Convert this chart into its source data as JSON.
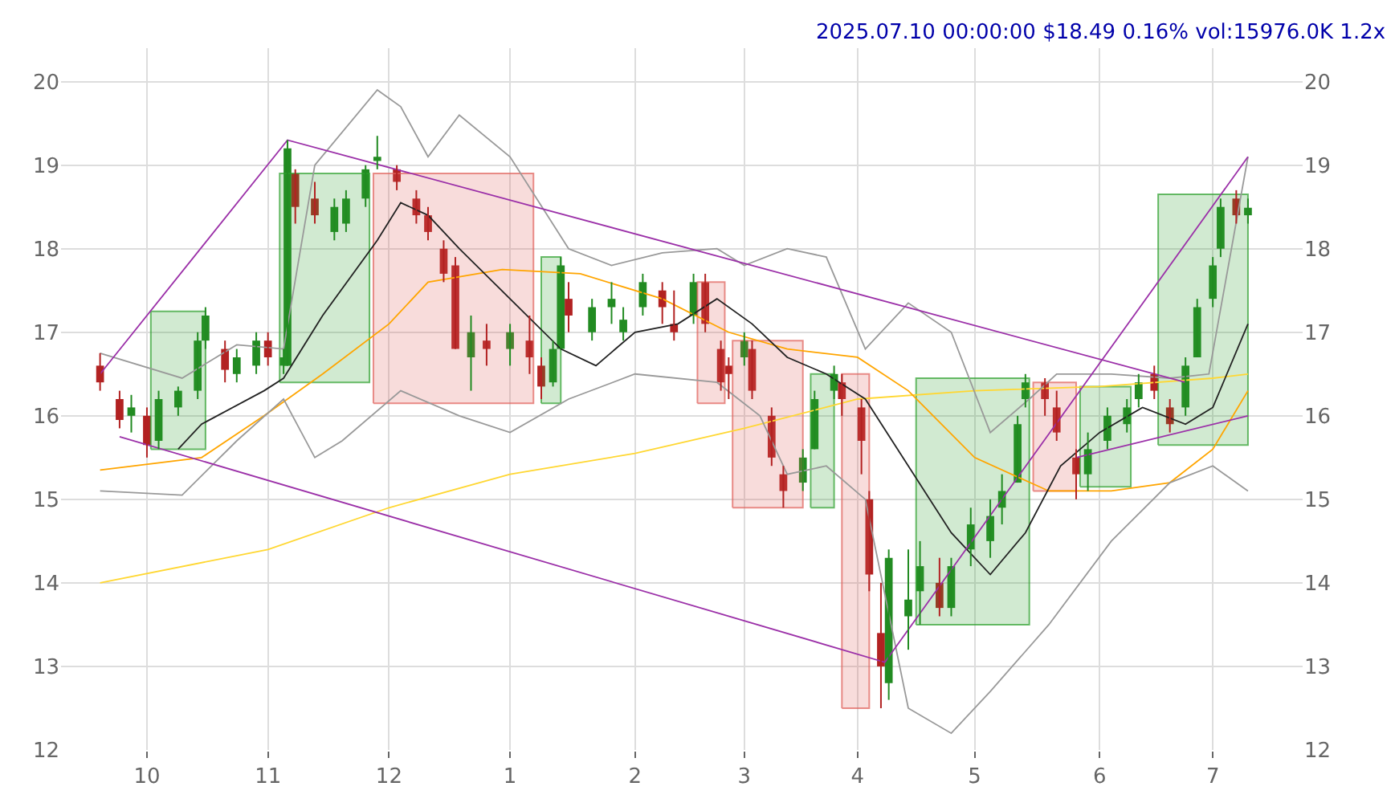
{
  "chart_data": {
    "type": "candlestick",
    "title": "2025.07.10 00:00:00 $18.49 0.16% vol:15976.0K 1.2x",
    "xlim": [
      "2024-09-09",
      "2025-07-24"
    ],
    "xticks": [
      {
        "value": "2024-10-01",
        "label": "10"
      },
      {
        "value": "2024-11-01",
        "label": "11"
      },
      {
        "value": "2024-12-02",
        "label": "12"
      },
      {
        "value": "2025-01-02",
        "label": "1"
      },
      {
        "value": "2025-02-03",
        "label": "2"
      },
      {
        "value": "2025-03-03",
        "label": "3"
      },
      {
        "value": "2025-04-01",
        "label": "4"
      },
      {
        "value": "2025-05-01",
        "label": "5"
      },
      {
        "value": "2025-06-02",
        "label": "6"
      },
      {
        "value": "2025-07-01",
        "label": "7"
      }
    ],
    "ylim": [
      12,
      20.4
    ],
    "yticks": [
      12,
      13,
      14,
      15,
      16,
      17,
      18,
      19,
      20
    ],
    "y2lim": [
      12,
      20.4
    ],
    "y2ticks": [
      12,
      13,
      14,
      15,
      16,
      17,
      18,
      19,
      20
    ],
    "grid": true,
    "series": [
      {
        "type": "area",
        "color": "#2ca02c",
        "x": [
          "2024-10-02",
          "2024-10-16",
          "2024-10-16",
          "2024-10-02",
          "2024-10-02"
        ],
        "values": [
          15.6,
          15.6,
          17.25,
          17.25,
          15.6
        ]
      },
      {
        "type": "area",
        "color": "#2ca02c",
        "x": [
          "2024-11-04",
          "2024-11-27",
          "2024-11-27",
          "2024-11-04",
          "2024-11-04"
        ],
        "values": [
          16.4,
          16.4,
          18.9,
          18.9,
          16.4
        ]
      },
      {
        "type": "area",
        "color": "#e0605a",
        "x": [
          "2024-11-28",
          "2025-01-08",
          "2025-01-08",
          "2024-11-28",
          "2024-11-28"
        ],
        "values": [
          16.15,
          16.15,
          18.9,
          18.9,
          16.15
        ]
      },
      {
        "type": "area",
        "color": "#2ca02c",
        "x": [
          "2025-01-10",
          "2025-01-15",
          "2025-01-15",
          "2025-01-10",
          "2025-01-10"
        ],
        "values": [
          16.15,
          16.15,
          17.9,
          17.9,
          16.15
        ]
      },
      {
        "type": "area",
        "color": "#e0605a",
        "x": [
          "2025-02-19",
          "2025-02-26",
          "2025-02-26",
          "2025-02-19",
          "2025-02-19"
        ],
        "values": [
          16.15,
          16.15,
          17.6,
          17.6,
          16.15
        ]
      },
      {
        "type": "area",
        "color": "#e0605a",
        "x": [
          "2025-02-28",
          "2025-03-18",
          "2025-03-18",
          "2025-02-28",
          "2025-02-28"
        ],
        "values": [
          14.9,
          14.9,
          16.9,
          16.9,
          14.9
        ]
      },
      {
        "type": "area",
        "color": "#2ca02c",
        "x": [
          "2025-03-20",
          "2025-03-26",
          "2025-03-26",
          "2025-03-20",
          "2025-03-20"
        ],
        "values": [
          14.9,
          14.9,
          16.5,
          16.5,
          14.9
        ]
      },
      {
        "type": "area",
        "color": "#e0605a",
        "x": [
          "2025-03-28",
          "2025-04-04",
          "2025-04-04",
          "2025-03-28",
          "2025-03-28"
        ],
        "values": [
          12.5,
          12.5,
          16.5,
          16.5,
          12.5
        ]
      },
      {
        "type": "area",
        "color": "#2ca02c",
        "x": [
          "2025-04-16",
          "2025-05-15",
          "2025-05-15",
          "2025-04-16",
          "2025-04-16"
        ],
        "values": [
          13.5,
          13.5,
          16.45,
          16.45,
          13.5
        ]
      },
      {
        "type": "area",
        "color": "#e0605a",
        "x": [
          "2025-05-16",
          "2025-05-27",
          "2025-05-27",
          "2025-05-16",
          "2025-05-16"
        ],
        "values": [
          15.1,
          15.1,
          16.4,
          16.4,
          15.1
        ]
      },
      {
        "type": "area",
        "color": "#2ca02c",
        "x": [
          "2025-05-28",
          "2025-06-10",
          "2025-06-10",
          "2025-05-28",
          "2025-05-28"
        ],
        "values": [
          15.15,
          15.15,
          16.35,
          16.35,
          15.15
        ]
      },
      {
        "type": "area",
        "color": "#2ca02c",
        "x": [
          "2025-06-17",
          "2025-07-10",
          "2025-07-10",
          "2025-06-17",
          "2025-06-17"
        ],
        "values": [
          15.65,
          15.65,
          18.65,
          18.65,
          15.65
        ]
      },
      {
        "type": "line",
        "color": "#ffd732",
        "x": [
          "2024-09-19",
          "2024-11-01",
          "2024-12-02",
          "2025-01-02",
          "2025-02-03",
          "2025-03-03",
          "2025-04-01",
          "2025-05-01",
          "2025-06-02",
          "2025-07-01",
          "2025-07-10"
        ],
        "values": [
          14.0,
          14.4,
          14.9,
          15.3,
          15.55,
          15.85,
          16.2,
          16.3,
          16.35,
          16.45,
          16.5
        ]
      },
      {
        "type": "line",
        "color": "#ffa500",
        "x": [
          "2024-09-19",
          "2024-10-15",
          "2024-10-31",
          "2024-11-15",
          "2024-12-02",
          "2024-12-12",
          "2024-12-31",
          "2025-01-20",
          "2025-02-10",
          "2025-02-27",
          "2025-03-14",
          "2025-04-01",
          "2025-04-14",
          "2025-05-01",
          "2025-05-20",
          "2025-06-05",
          "2025-06-20",
          "2025-07-01",
          "2025-07-10"
        ],
        "values": [
          15.35,
          15.5,
          16.0,
          16.5,
          17.1,
          17.6,
          17.75,
          17.7,
          17.4,
          17.0,
          16.8,
          16.7,
          16.3,
          15.5,
          15.1,
          15.1,
          15.2,
          15.6,
          16.3
        ]
      },
      {
        "type": "line",
        "color": "#999999",
        "x": [
          "2024-09-19",
          "2024-10-10",
          "2024-10-24",
          "2024-11-05",
          "2024-11-13",
          "2024-11-29",
          "2024-12-05",
          "2024-12-12",
          "2024-12-20",
          "2025-01-02",
          "2025-01-17",
          "2025-01-28",
          "2025-02-10",
          "2025-02-24",
          "2025-03-03",
          "2025-03-14",
          "2025-03-24",
          "2025-04-03",
          "2025-04-14",
          "2025-04-25",
          "2025-05-05",
          "2025-05-15",
          "2025-05-22",
          "2025-06-05",
          "2025-06-20",
          "2025-06-30",
          "2025-07-10"
        ],
        "values": [
          16.75,
          16.45,
          16.85,
          16.8,
          19.0,
          19.9,
          19.7,
          19.1,
          19.6,
          19.1,
          18.0,
          17.8,
          17.95,
          18.0,
          17.8,
          18.0,
          17.9,
          16.8,
          17.35,
          17.0,
          15.8,
          16.2,
          16.5,
          16.5,
          16.45,
          16.5,
          19.1
        ]
      },
      {
        "type": "line",
        "color": "#999999",
        "x": [
          "2024-09-19",
          "2024-10-10",
          "2024-10-24",
          "2024-11-05",
          "2024-11-13",
          "2024-11-20",
          "2024-12-05",
          "2024-12-20",
          "2025-01-02",
          "2025-01-17",
          "2025-02-03",
          "2025-02-24",
          "2025-03-07",
          "2025-03-14",
          "2025-03-24",
          "2025-04-03",
          "2025-04-14",
          "2025-04-25",
          "2025-05-05",
          "2025-05-20",
          "2025-06-05",
          "2025-06-20",
          "2025-07-01",
          "2025-07-10"
        ],
        "values": [
          15.1,
          15.05,
          15.7,
          16.2,
          15.5,
          15.7,
          16.3,
          16.0,
          15.8,
          16.2,
          16.5,
          16.4,
          16.0,
          15.3,
          15.4,
          15.0,
          12.5,
          12.2,
          12.7,
          13.5,
          14.5,
          15.2,
          15.4,
          15.1
        ]
      },
      {
        "type": "line",
        "color": "#222222",
        "x": [
          "2024-10-09",
          "2024-10-15",
          "2024-10-31",
          "2024-11-05",
          "2024-11-15",
          "2024-11-29",
          "2024-12-05",
          "2024-12-12",
          "2024-12-20",
          "2025-01-02",
          "2025-01-15",
          "2025-01-24",
          "2025-02-03",
          "2025-02-14",
          "2025-02-24",
          "2025-03-05",
          "2025-03-14",
          "2025-03-24",
          "2025-04-03",
          "2025-04-14",
          "2025-04-25",
          "2025-05-05",
          "2025-05-14",
          "2025-05-23",
          "2025-06-02",
          "2025-06-13",
          "2025-06-24",
          "2025-07-01",
          "2025-07-10"
        ],
        "values": [
          15.6,
          15.9,
          16.3,
          16.45,
          17.2,
          18.1,
          18.55,
          18.4,
          18.0,
          17.4,
          16.8,
          16.6,
          17.0,
          17.1,
          17.4,
          17.1,
          16.7,
          16.5,
          16.2,
          15.4,
          14.6,
          14.1,
          14.6,
          15.4,
          15.8,
          16.1,
          15.9,
          16.1,
          17.1
        ]
      },
      {
        "type": "line",
        "color": "#9b30a8",
        "x": [
          "2024-09-19",
          "2024-11-06",
          "2025-06-24"
        ],
        "values": [
          16.5,
          19.3,
          16.4
        ]
      },
      {
        "type": "line",
        "color": "#9b30a8",
        "x": [
          "2024-09-24",
          "2025-04-08",
          "2025-07-10"
        ],
        "values": [
          15.75,
          13.05,
          19.1
        ]
      },
      {
        "type": "line",
        "color": "#9b30a8",
        "x": [
          "2025-05-27",
          "2025-07-10"
        ],
        "values": [
          15.5,
          16.0
        ]
      },
      {
        "x": [
          "2024-09-19",
          "2024-09-24",
          "2024-09-27",
          "2024-10-01",
          "2024-10-04",
          "2024-10-09",
          "2024-10-14",
          "2024-10-16",
          "2024-10-21",
          "2024-10-24",
          "2024-10-29",
          "2024-11-01",
          "2024-11-05",
          "2024-11-06",
          "2024-11-08",
          "2024-11-13",
          "2024-11-18",
          "2024-11-21",
          "2024-11-26",
          "2024-11-29",
          "2024-12-04",
          "2024-12-09",
          "2024-12-12",
          "2024-12-16",
          "2024-12-19",
          "2024-12-23",
          "2024-12-27",
          "2025-01-02",
          "2025-01-07",
          "2025-01-10",
          "2025-01-13",
          "2025-01-15",
          "2025-01-17",
          "2025-01-23",
          "2025-01-28",
          "2025-01-31",
          "2025-02-05",
          "2025-02-10",
          "2025-02-13",
          "2025-02-18",
          "2025-02-21",
          "2025-02-25",
          "2025-02-27",
          "2025-03-03",
          "2025-03-05",
          "2025-03-10",
          "2025-03-13",
          "2025-03-18",
          "2025-03-21",
          "2025-03-26",
          "2025-03-28",
          "2025-04-02",
          "2025-04-04",
          "2025-04-07",
          "2025-04-09",
          "2025-04-14",
          "2025-04-17",
          "2025-04-22",
          "2025-04-25",
          "2025-04-30",
          "2025-05-05",
          "2025-05-08",
          "2025-05-12",
          "2025-05-14",
          "2025-05-19",
          "2025-05-22",
          "2025-05-27",
          "2025-05-30",
          "2025-06-04",
          "2025-06-09",
          "2025-06-12",
          "2025-06-16",
          "2025-06-20",
          "2025-06-24",
          "2025-06-27",
          "2025-07-01",
          "2025-07-03",
          "2025-07-07",
          "2025-07-10"
        ],
        "ohlc": [
          [
            16.6,
            16.75,
            16.3,
            16.4
          ],
          [
            16.2,
            16.3,
            15.85,
            15.95
          ],
          [
            16.0,
            16.25,
            15.8,
            16.1
          ],
          [
            16.0,
            16.1,
            15.5,
            15.65
          ],
          [
            15.7,
            16.3,
            15.6,
            16.2
          ],
          [
            16.1,
            16.35,
            16.0,
            16.3
          ],
          [
            16.3,
            17.0,
            16.2,
            16.9
          ],
          [
            16.9,
            17.3,
            16.8,
            17.2
          ],
          [
            16.8,
            16.9,
            16.4,
            16.55
          ],
          [
            16.5,
            16.8,
            16.4,
            16.7
          ],
          [
            16.6,
            17.0,
            16.5,
            16.9
          ],
          [
            16.9,
            17.0,
            16.6,
            16.7
          ],
          [
            16.6,
            16.8,
            16.5,
            16.7
          ],
          [
            16.6,
            19.3,
            16.6,
            19.2
          ],
          [
            18.9,
            18.95,
            18.3,
            18.5
          ],
          [
            18.6,
            18.8,
            18.3,
            18.4
          ],
          [
            18.2,
            18.6,
            18.1,
            18.5
          ],
          [
            18.3,
            18.7,
            18.2,
            18.6
          ],
          [
            18.6,
            19.0,
            18.5,
            18.95
          ],
          [
            19.05,
            19.35,
            18.95,
            19.1
          ],
          [
            18.95,
            19.0,
            18.7,
            18.8
          ],
          [
            18.6,
            18.7,
            18.3,
            18.4
          ],
          [
            18.4,
            18.5,
            18.1,
            18.2
          ],
          [
            18.0,
            18.1,
            17.6,
            17.7
          ],
          [
            17.8,
            17.9,
            16.8,
            16.8
          ],
          [
            16.7,
            17.2,
            16.3,
            17.0
          ],
          [
            16.9,
            17.1,
            16.6,
            16.8
          ],
          [
            16.8,
            17.1,
            16.6,
            17.0
          ],
          [
            16.9,
            17.2,
            16.5,
            16.7
          ],
          [
            16.6,
            16.7,
            16.2,
            16.35
          ],
          [
            16.4,
            16.9,
            16.35,
            16.8
          ],
          [
            16.8,
            17.9,
            16.8,
            17.8
          ],
          [
            17.4,
            17.6,
            17.0,
            17.2
          ],
          [
            17.0,
            17.4,
            16.9,
            17.3
          ],
          [
            17.3,
            17.6,
            17.1,
            17.4
          ],
          [
            17.0,
            17.3,
            16.9,
            17.15
          ],
          [
            17.3,
            17.7,
            17.2,
            17.6
          ],
          [
            17.5,
            17.6,
            17.1,
            17.3
          ],
          [
            17.1,
            17.5,
            16.9,
            17.0
          ],
          [
            17.2,
            17.7,
            17.1,
            17.6
          ],
          [
            17.6,
            17.7,
            17.0,
            17.1
          ],
          [
            16.8,
            16.9,
            16.3,
            16.4
          ],
          [
            16.6,
            16.7,
            16.2,
            16.5
          ],
          [
            16.7,
            17.0,
            16.6,
            16.9
          ],
          [
            16.8,
            16.9,
            16.2,
            16.3
          ],
          [
            16.0,
            16.1,
            15.4,
            15.5
          ],
          [
            15.3,
            15.4,
            14.9,
            15.1
          ],
          [
            15.2,
            15.6,
            15.1,
            15.5
          ],
          [
            15.6,
            16.3,
            15.6,
            16.2
          ],
          [
            16.3,
            16.6,
            16.2,
            16.5
          ],
          [
            16.4,
            16.5,
            16.0,
            16.2
          ],
          [
            16.1,
            16.2,
            15.3,
            15.7
          ],
          [
            15.0,
            15.1,
            13.9,
            14.1
          ],
          [
            13.4,
            14.0,
            12.5,
            13.0
          ],
          [
            12.8,
            14.4,
            12.6,
            14.3
          ],
          [
            13.6,
            14.4,
            13.2,
            13.8
          ],
          [
            13.9,
            14.5,
            13.5,
            14.2
          ],
          [
            14.0,
            14.3,
            13.6,
            13.7
          ],
          [
            13.7,
            14.3,
            13.6,
            14.2
          ],
          [
            14.4,
            14.9,
            14.2,
            14.7
          ],
          [
            14.5,
            15.0,
            14.3,
            14.8
          ],
          [
            14.9,
            15.3,
            14.7,
            15.1
          ],
          [
            15.2,
            16.0,
            15.2,
            15.9
          ],
          [
            16.2,
            16.5,
            16.1,
            16.4
          ],
          [
            16.4,
            16.45,
            16.0,
            16.2
          ],
          [
            16.1,
            16.3,
            15.7,
            15.8
          ],
          [
            15.5,
            15.6,
            15.0,
            15.3
          ],
          [
            15.3,
            15.8,
            15.1,
            15.6
          ],
          [
            15.7,
            16.1,
            15.6,
            16.0
          ],
          [
            15.9,
            16.2,
            15.8,
            16.1
          ],
          [
            16.2,
            16.5,
            16.1,
            16.4
          ],
          [
            16.5,
            16.6,
            16.2,
            16.3
          ],
          [
            16.1,
            16.2,
            15.8,
            15.9
          ],
          [
            16.1,
            16.7,
            16.0,
            16.6
          ],
          [
            16.7,
            17.4,
            16.7,
            17.3
          ],
          [
            17.4,
            17.9,
            17.3,
            17.8
          ],
          [
            18.0,
            18.6,
            17.9,
            18.5
          ],
          [
            18.6,
            18.7,
            18.3,
            18.4
          ],
          [
            18.4,
            18.6,
            18.3,
            18.49
          ]
        ],
        "colors": [
          "#b22222",
          "#b22222",
          "#228b22",
          "#b22222",
          "#228b22",
          "#228b22",
          "#228b22",
          "#228b22",
          "#b22222",
          "#228b22",
          "#228b22",
          "#b22222",
          "#228b22",
          "#228b22",
          "#b22222",
          "#b22222",
          "#228b22",
          "#228b22",
          "#228b22",
          "#228b22",
          "#b22222",
          "#b22222",
          "#b22222",
          "#b22222",
          "#b22222",
          "#228b22",
          "#b22222",
          "#228b22",
          "#b22222",
          "#b22222",
          "#228b22",
          "#228b22",
          "#b22222",
          "#228b22",
          "#228b22",
          "#228b22",
          "#228b22",
          "#b22222",
          "#b22222",
          "#228b22",
          "#b22222",
          "#b22222",
          "#b22222",
          "#228b22",
          "#b22222",
          "#b22222",
          "#b22222",
          "#228b22",
          "#228b22",
          "#228b22",
          "#b22222",
          "#b22222",
          "#b22222",
          "#b22222",
          "#228b22",
          "#228b22",
          "#228b22",
          "#b22222",
          "#228b22",
          "#228b22",
          "#228b22",
          "#228b22",
          "#228b22",
          "#228b22",
          "#b22222",
          "#b22222",
          "#b22222",
          "#228b22",
          "#228b22",
          "#228b22",
          "#228b22",
          "#b22222",
          "#b22222",
          "#228b22",
          "#228b22",
          "#228b22",
          "#228b22",
          "#b22222",
          "#228b22"
        ]
      }
    ]
  }
}
